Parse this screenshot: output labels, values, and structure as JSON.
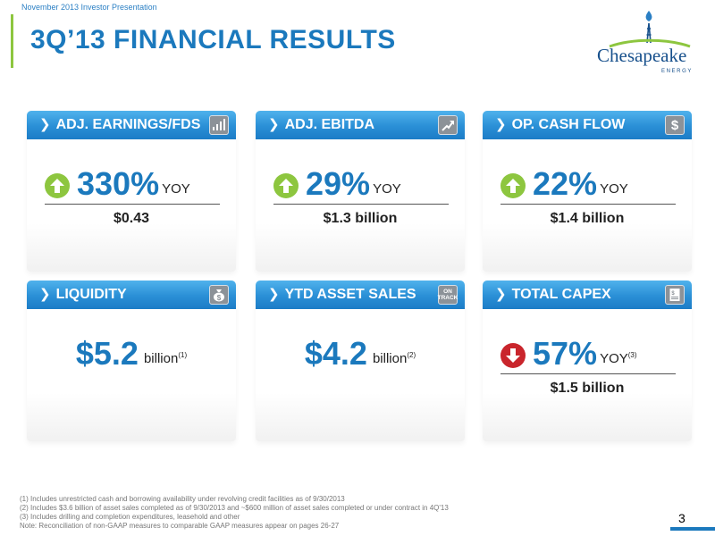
{
  "header": {
    "caption": "November 2013 Investor Presentation",
    "title": "3Q’13 FINANCIAL RESULTS"
  },
  "logo": {
    "name": "Chesapeake",
    "subtext": "ENERGY"
  },
  "cards": {
    "earnings": {
      "title": "ADJ. EARNINGS/FDS",
      "value": "330%",
      "yoy": "YOY",
      "sub": "$0.43",
      "icon": "bar-chart-icon"
    },
    "ebitda": {
      "title": "ADJ. EBITDA",
      "value": "29%",
      "yoy": "YOY",
      "sub": "$1.3 billion",
      "icon": "trend-up-icon"
    },
    "cashflow": {
      "title": "OP. CASH FLOW",
      "value": "22%",
      "yoy": "YOY",
      "sub": "$1.4 billion",
      "icon": "dollar-icon"
    },
    "liquidity": {
      "title": "LIQUIDITY",
      "value": "$5.2",
      "unit": "billion",
      "note": "(1)",
      "icon": "money-bag-icon"
    },
    "assetsales": {
      "title": "YTD ASSET SALES",
      "value": "$4.2",
      "unit": "billion",
      "note": "(2)",
      "icon": "on-track-icon",
      "icon_text": "ON TRACK"
    },
    "capex": {
      "title": "TOTAL CAPEX",
      "value": "57%",
      "yoy": "YOY",
      "note": "(3)",
      "sub": "$1.5 billion",
      "icon": "invoice-icon"
    }
  },
  "footnotes": [
    "(1) Includes unrestricted cash and borrowing availability under revolving credit facilities as of 9/30/2013",
    "(2) Includes $3.6 billion of asset sales completed as of 9/30/2013 and ~$600 million of asset sales completed or under contract in 4Q'13",
    "(3) Includes drilling and completion expenditures, leasehold and other",
    "Note: Reconciliation of non-GAAP measures to comparable GAAP measures appear on pages 26-27"
  ],
  "page_number": "3",
  "colors": {
    "accent_blue": "#1b79bd",
    "header_blue": "#2a8fd6",
    "up_green": "#8dc63f",
    "down_red": "#c9252c"
  }
}
